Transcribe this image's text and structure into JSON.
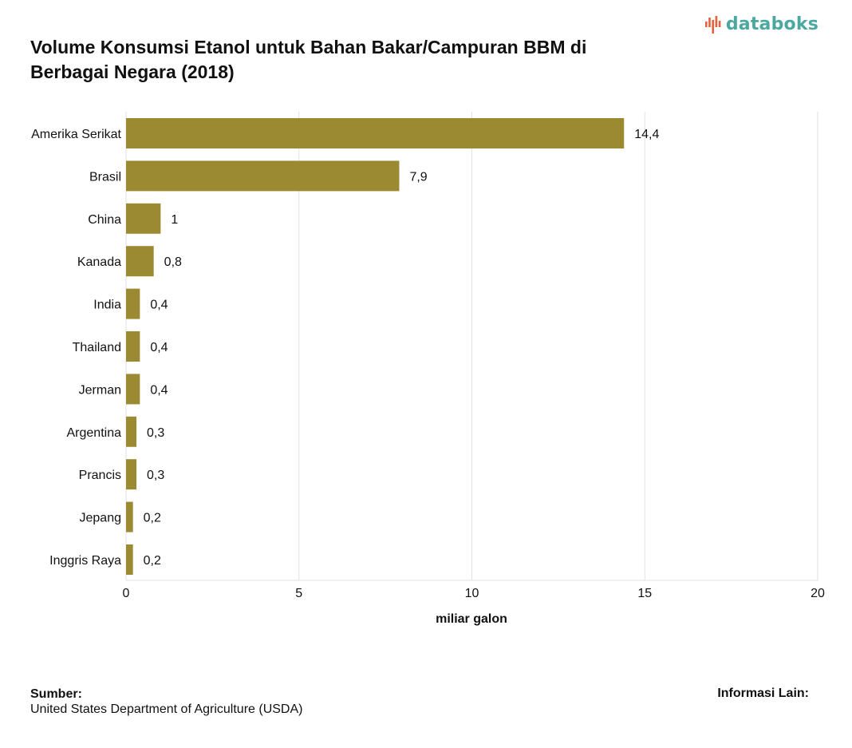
{
  "brand": {
    "logo_text": "databoks",
    "logo_icon": "databoks-logo-icon"
  },
  "title": "Volume Konsumsi Etanol untuk Bahan Bakar/Campuran BBM di Berbagai Negara (2018)",
  "footer": {
    "source_label": "Sumber:",
    "source_text": "United States Department of Agriculture (USDA)",
    "info_label": "Informasi Lain:"
  },
  "colors": {
    "bar": "#9c8a33",
    "grid": "#e2e2e2",
    "logo_teal": "#4aa8a0",
    "logo_orange": "#e8603c"
  },
  "chart_data": {
    "type": "bar",
    "orientation": "horizontal",
    "categories": [
      "Amerika Serikat",
      "Brasil",
      "China",
      "Kanada",
      "India",
      "Thailand",
      "Jerman",
      "Argentina",
      "Prancis",
      "Jepang",
      "Inggris Raya"
    ],
    "values": [
      14.4,
      7.9,
      1,
      0.8,
      0.4,
      0.4,
      0.4,
      0.3,
      0.3,
      0.2,
      0.2
    ],
    "value_labels": [
      "14,4",
      "7,9",
      "1",
      "0,8",
      "0,4",
      "0,4",
      "0,4",
      "0,3",
      "0,3",
      "0,2",
      "0,2"
    ],
    "xlabel": "miliar galon",
    "ylabel": "",
    "xlim": [
      0,
      20
    ],
    "xticks": [
      0,
      5,
      10,
      15,
      20
    ],
    "grid": true,
    "legend": "none"
  }
}
